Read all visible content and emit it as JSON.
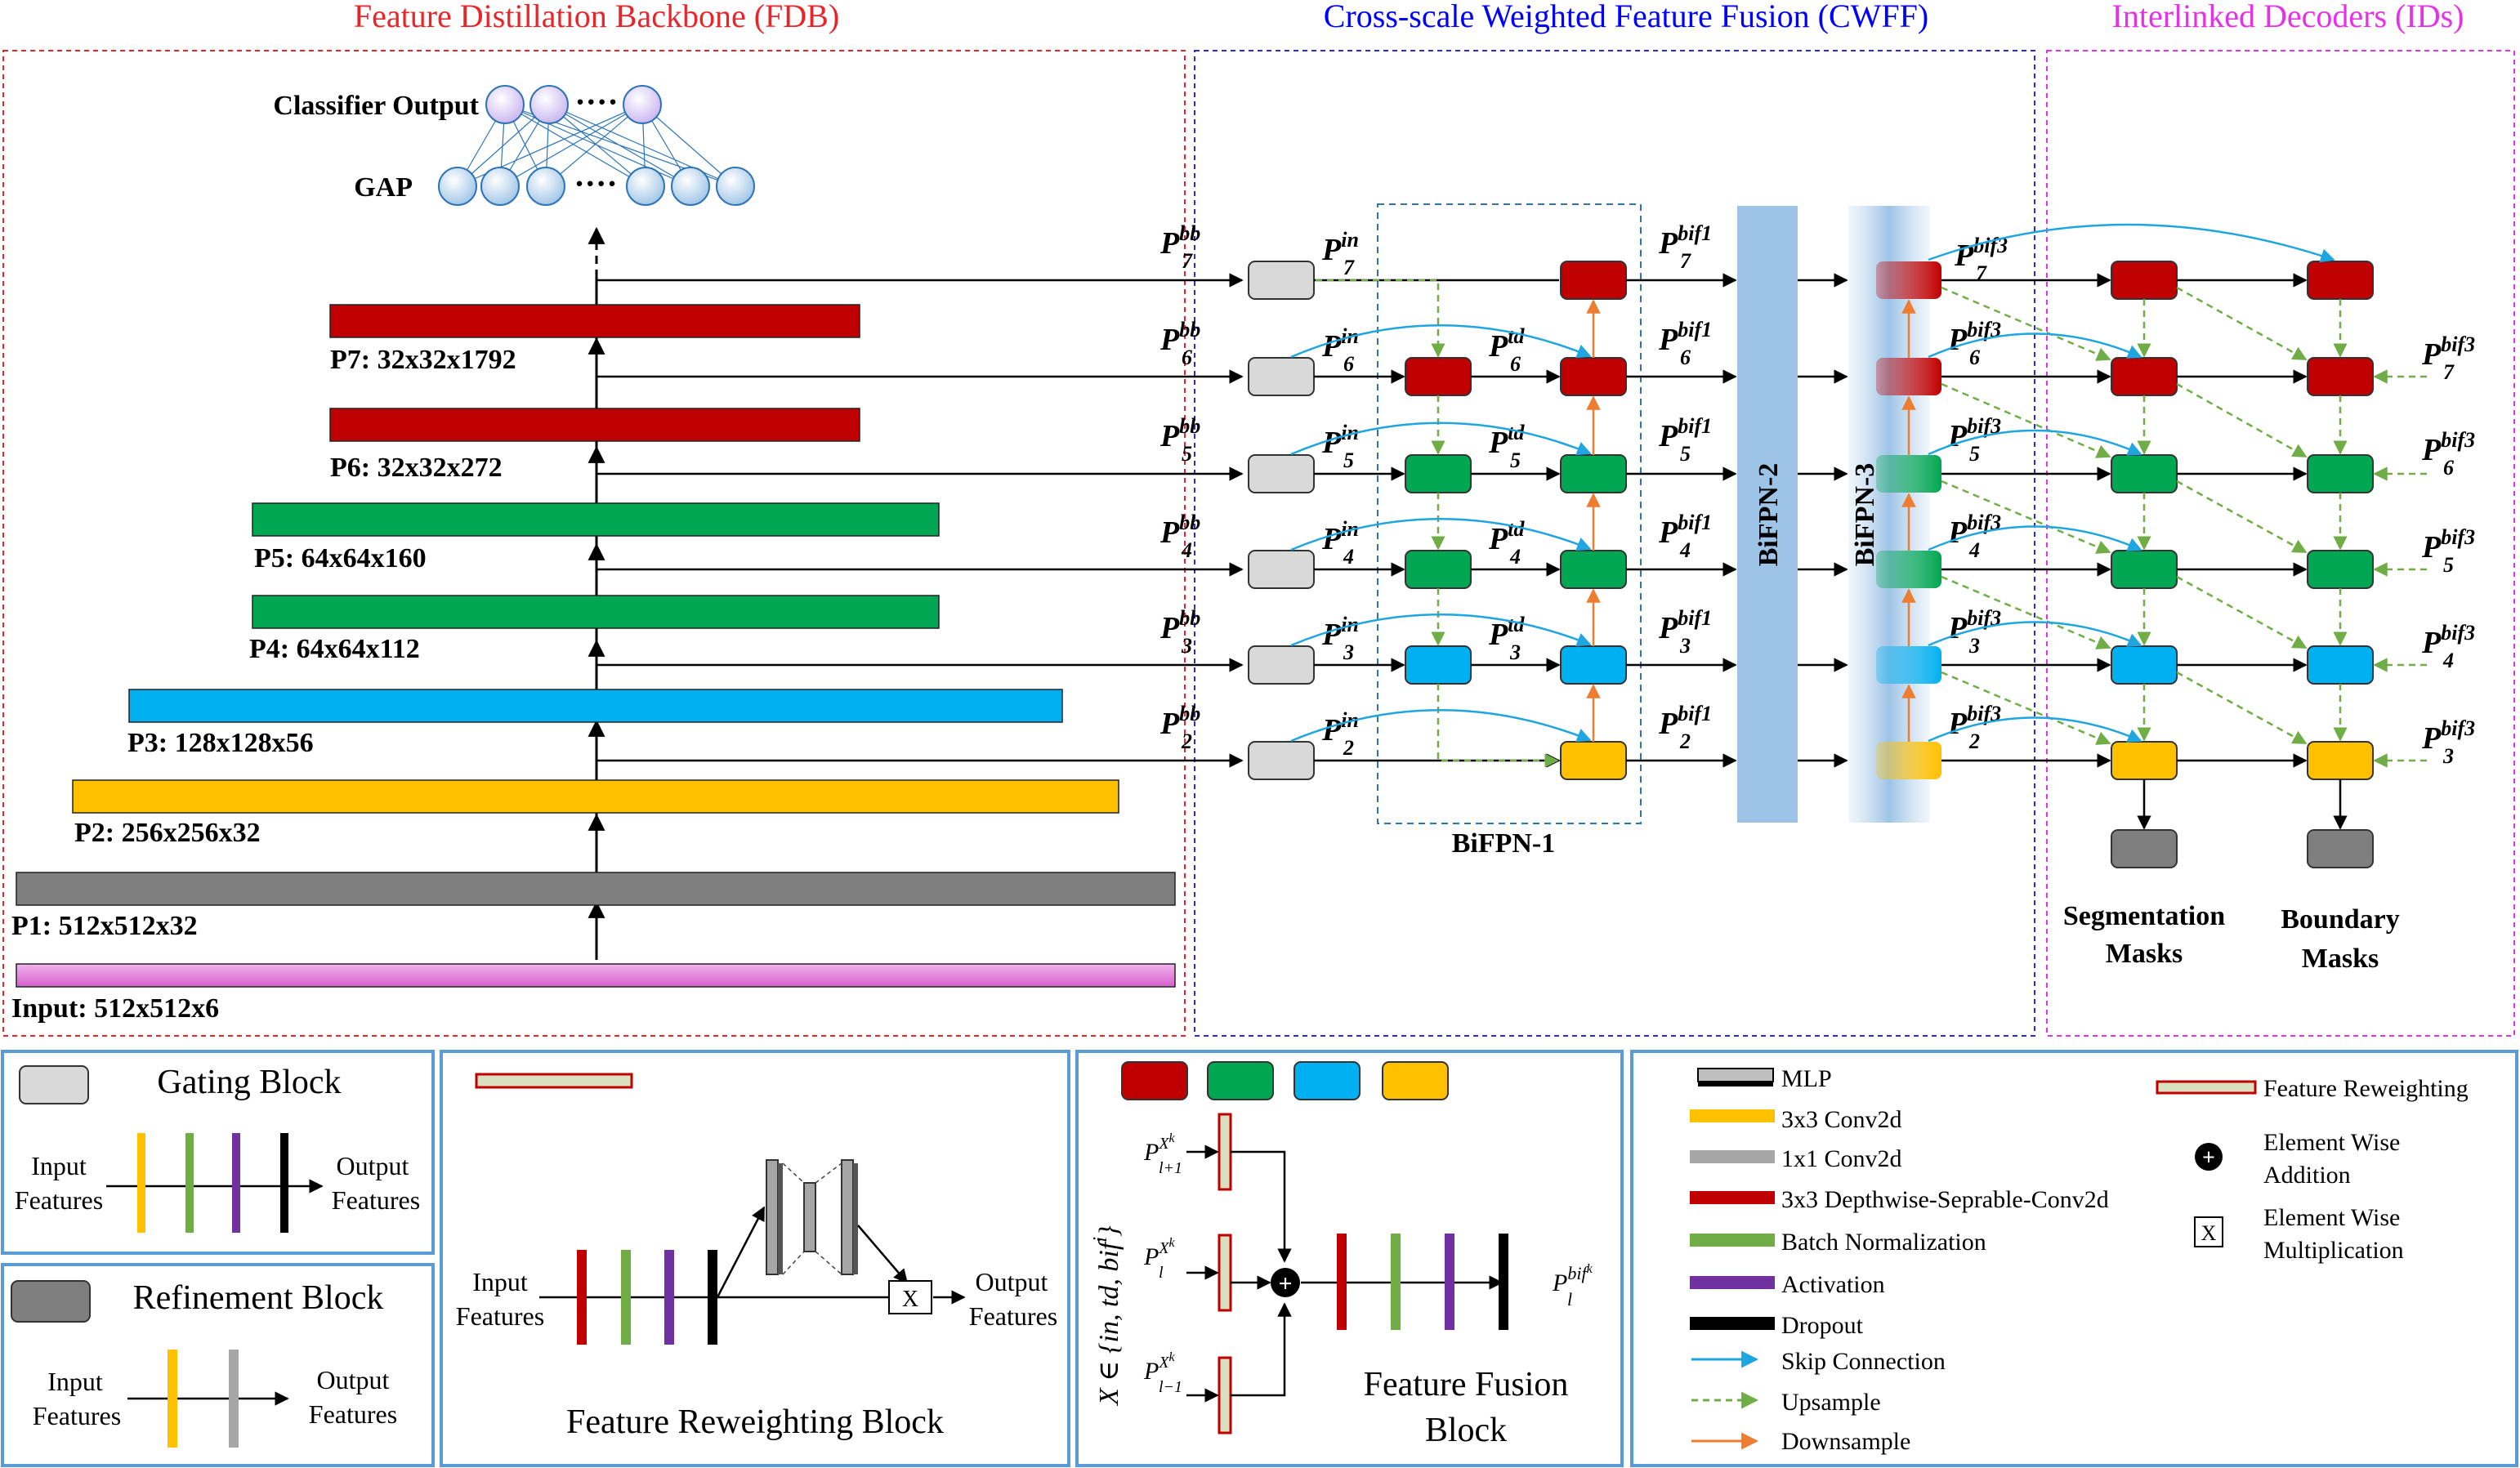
{
  "sections": {
    "fdb_title": "Feature Distillation Backbone (FDB)",
    "cwff_title": "Cross-scale Weighted Feature Fusion (CWFF)",
    "ids_title": "Interlinked Decoders (IDs)"
  },
  "backbone": {
    "classifier_label": "Classifier Output",
    "gap_label": "GAP",
    "dots": "····",
    "layers": [
      {
        "label": "P7: 32x32x1792",
        "color": "#c00000"
      },
      {
        "label": "P6: 32x32x272",
        "color": "#c00000"
      },
      {
        "label": "P5: 64x64x160",
        "color": "#00a651"
      },
      {
        "label": "P4: 64x64x112",
        "color": "#00a651"
      },
      {
        "label": "P3: 128x128x56",
        "color": "#00b0f0"
      },
      {
        "label": "P2: 256x256x32",
        "color": "#ffc000"
      },
      {
        "label": "P1: 512x512x32",
        "color": "#808080"
      },
      {
        "label": "Input: 512x512x6",
        "color": "#e879e0"
      }
    ]
  },
  "fusion": {
    "bifpn1": "BiFPN-1",
    "bifpn2": "BiFPN-2",
    "bifpn3": "BiFPN-3",
    "levels": [
      "7",
      "6",
      "5",
      "4",
      "3",
      "2"
    ],
    "bb_sup": "bb",
    "in_sup": "in",
    "td_sup": "td",
    "bif1_sup": "bif1",
    "bif3_sup": "bif3",
    "p": "P"
  },
  "decoders": {
    "seg_label_1": "Segmentation",
    "seg_label_2": "Masks",
    "bnd_label_1": "Boundary",
    "bnd_label_2": "Masks",
    "bif3_levels": [
      "7",
      "6",
      "5",
      "4",
      "3"
    ]
  },
  "legend_gating": {
    "title": "Gating Block",
    "in_1": "Input",
    "in_2": "Features",
    "out_1": "Output",
    "out_2": "Features"
  },
  "legend_refine": {
    "title": "Refinement Block",
    "in_1": "Input",
    "in_2": "Features",
    "out_1": "Output",
    "out_2": "Features"
  },
  "legend_reweight": {
    "title": "Feature Reweighting  Block",
    "in_1": "Input",
    "in_2": "Features",
    "out_1": "Output",
    "out_2": "Features",
    "mult": "X"
  },
  "legend_fusion": {
    "title_1": "Feature Fusion",
    "title_2": "Block",
    "set_expr": "X ∈ {in, td, bif",
    "set_sup": "i",
    "set_close": "}",
    "in_top": "P",
    "in_top_sub": "l+1",
    "in_mid_sub": "l",
    "in_bot_sub": "l−1",
    "xk": "X",
    "k": "k",
    "out_p": "P",
    "out_sub": "l",
    "out_sup": "bif",
    "out_k": "k"
  },
  "legend_key": {
    "items": [
      {
        "label": "MLP",
        "kind": "mlp"
      },
      {
        "label": "3x3 Conv2d",
        "kind": "bar",
        "color": "#ffc000"
      },
      {
        "label": "1x1 Conv2d",
        "kind": "bar",
        "color": "#a6a6a6"
      },
      {
        "label": "3x3 Depthwise-Seprable-Conv2d",
        "kind": "bar",
        "color": "#c00000"
      },
      {
        "label": "Batch Normalization",
        "kind": "bar",
        "color": "#70ad47"
      },
      {
        "label": "Activation",
        "kind": "bar",
        "color": "#7030a0"
      },
      {
        "label": "Dropout",
        "kind": "bar",
        "color": "#000000"
      },
      {
        "label": "Skip Connection",
        "kind": "skip",
        "color": "#1fa5e0"
      },
      {
        "label": "Upsample",
        "kind": "up",
        "color": "#70ad47"
      },
      {
        "label": "Downsample",
        "kind": "down",
        "color": "#ed7d31"
      }
    ],
    "feature_reweighting": "Feature Reweighting",
    "add_1": "Element Wise",
    "add_2": "Addition",
    "mul_1": "Element Wise",
    "mul_2": "Multiplication",
    "mul_symbol": "X",
    "add_symbol": "+"
  },
  "colors": {
    "red": "#c00000",
    "green": "#00a651",
    "blue": "#00b0f0",
    "yellow": "#ffc000",
    "gray": "#d9d9d9",
    "dark_gray": "#7f7f7f",
    "skip": "#1fa5e0",
    "upsample": "#70ad47",
    "downsample": "#ed7d31",
    "panel_border": "#5b9bd5"
  }
}
